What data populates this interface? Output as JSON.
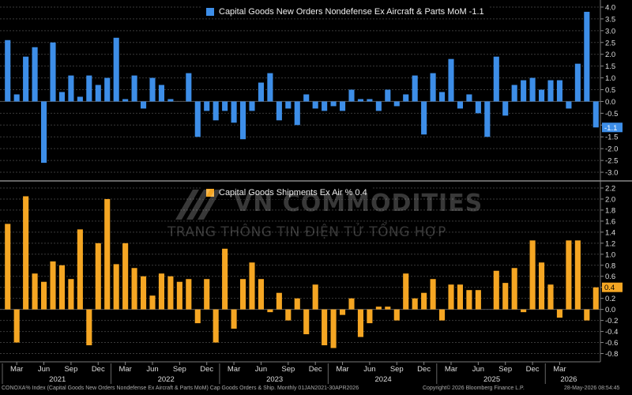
{
  "chart_data": [
    {
      "type": "bar",
      "legend": "Capital Goods New Orders Nondefense Ex Aircraft & Parts MoM -1.1",
      "color": "#3d8ee8",
      "last_value_label": "-1.1",
      "ylim": [
        -3.3,
        4.3
      ],
      "yticks": [
        "4.0",
        "3.5",
        "3.0",
        "2.5",
        "2.0",
        "1.5",
        "1.0",
        "0.5",
        "0.0",
        "-0.5",
        "-1.0",
        "-1.5",
        "-2.0",
        "-2.5",
        "-3.0"
      ],
      "values": [
        2.6,
        0.3,
        1.9,
        2.3,
        -2.6,
        2.5,
        0.4,
        1.1,
        0.2,
        1.1,
        0.7,
        1.0,
        2.7,
        0.1,
        1.1,
        -0.3,
        1.0,
        0.7,
        0.1,
        0,
        1.2,
        -1.5,
        -0.4,
        -0.8,
        -0.4,
        -0.9,
        -1.6,
        -0.4,
        0.8,
        1.2,
        -0.8,
        -0.3,
        -1.0,
        0.3,
        -0.3,
        -0.4,
        -0.2,
        -0.4,
        0.5,
        0.1,
        0.1,
        -0.4,
        0.5,
        -0.2,
        0.3,
        1.1,
        -1.4,
        1.2,
        0.4,
        1.8,
        -0.3,
        0.3,
        -0.5,
        -1.5,
        1.9,
        -0.6,
        0.7,
        0.9,
        1.0,
        0.5,
        0.9,
        0.9,
        -0.3,
        1.6,
        3.8,
        -1.1
      ]
    },
    {
      "type": "bar",
      "legend": "Capital Goods Shipments Ex Air % 0.4",
      "color": "#f5a623",
      "last_value_label": "0.4",
      "ylim": [
        -0.95,
        2.3
      ],
      "yticks": [
        "2.2",
        "2.0",
        "1.8",
        "1.6",
        "1.4",
        "1.2",
        "1.0",
        "0.8",
        "0.6",
        "0.4",
        "0.2",
        "0.0",
        "-0.2",
        "-0.4",
        "-0.6",
        "-0.8"
      ],
      "values": [
        1.55,
        -0.6,
        2.05,
        0.65,
        0.5,
        0.87,
        0.8,
        0.55,
        1.45,
        -0.65,
        1.2,
        2.0,
        0.82,
        1.2,
        0.75,
        0.6,
        0.25,
        0.65,
        0.6,
        0.5,
        0.55,
        -0.25,
        0.55,
        -0.6,
        1.1,
        -0.35,
        0.55,
        0.85,
        0.55,
        -0.05,
        0.3,
        -0.2,
        0.2,
        -0.45,
        0.45,
        -0.65,
        -0.7,
        -0.1,
        0.2,
        -0.5,
        -0.25,
        0.05,
        0.05,
        -0.2,
        0.65,
        0.2,
        0.3,
        0.55,
        -0.2,
        0.45,
        0.45,
        0.35,
        0.35,
        0.0,
        0.7,
        0.48,
        0.75,
        -0.05,
        1.25,
        0.85,
        0.45,
        -0.15,
        1.25,
        1.25,
        -0.2,
        0.4
      ]
    }
  ],
  "xaxis": {
    "months": [
      {
        "label": "Mar",
        "i": 1
      },
      {
        "label": "Jun",
        "i": 4
      },
      {
        "label": "Sep",
        "i": 7
      },
      {
        "label": "Dec",
        "i": 10
      },
      {
        "label": "Mar",
        "i": 13
      },
      {
        "label": "Jun",
        "i": 16
      },
      {
        "label": "Sep",
        "i": 19
      },
      {
        "label": "Dec",
        "i": 22
      },
      {
        "label": "Mar",
        "i": 25
      },
      {
        "label": "Jun",
        "i": 28
      },
      {
        "label": "Sep",
        "i": 31
      },
      {
        "label": "Dec",
        "i": 34
      },
      {
        "label": "Mar",
        "i": 37
      },
      {
        "label": "Jun",
        "i": 40
      },
      {
        "label": "Sep",
        "i": 43
      },
      {
        "label": "Dec",
        "i": 46
      },
      {
        "label": "Mar",
        "i": 49
      },
      {
        "label": "Jun",
        "i": 52
      },
      {
        "label": "Sep",
        "i": 55
      },
      {
        "label": "Dec",
        "i": 58
      },
      {
        "label": "Mar",
        "i": 61
      }
    ],
    "years": [
      {
        "label": "2021",
        "i": 5.5
      },
      {
        "label": "2022",
        "i": 17.5
      },
      {
        "label": "2023",
        "i": 29.5
      },
      {
        "label": "2024",
        "i": 41.5
      },
      {
        "label": "2025",
        "i": 53.5
      },
      {
        "label": "2026",
        "i": 62
      }
    ]
  },
  "footer": {
    "left": "CONOXA% Index (Capital Goods New Orders Nondefense Ex Aircraft & Parts MoM) Cap Goods Orders & Ship. Monthly 01JAN2021-30APR2026",
    "middle": "Copyright© 2026 Bloomberg Finance L.P.",
    "right": "28-May-2026 08:54:45"
  },
  "watermark": {
    "brand": "VN COMMODITIES",
    "subtitle": "TRANG THÔNG TIN ĐIỆN TỬ TỔNG HỢP"
  }
}
